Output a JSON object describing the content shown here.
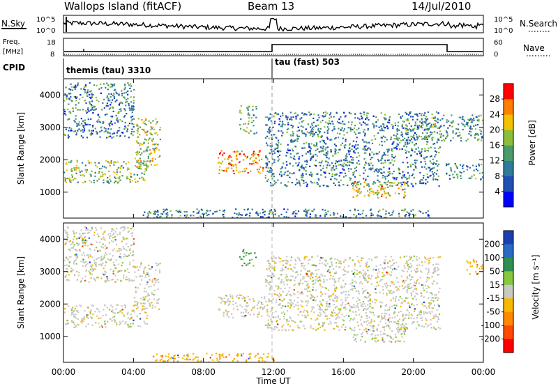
{
  "header": {
    "title": "Wallops Island (fitACF)",
    "beam": "Beam 13",
    "date": "14/Jul/2010"
  },
  "summary": {
    "nsky_label": "N.Sky",
    "nsearch_label": "N.Search",
    "left_ticks": [
      "10^5",
      "10^0"
    ],
    "right_ticks": [
      "10^5",
      "10^0"
    ],
    "freq_label_1": "Freq.",
    "freq_label_2": "[MHz]",
    "freq_ticks": [
      "18",
      "8"
    ],
    "nave_label": "Nave",
    "nave_ticks": [
      "60",
      "0"
    ],
    "cpid_label": "CPID",
    "cpid_segments": [
      {
        "label": "themis (tau) 3310",
        "start": "00:00"
      },
      {
        "label": "tau (fast) 503",
        "start": "12:00"
      }
    ]
  },
  "power_colorbar": {
    "label": "Power [dB]",
    "ticks": [
      "28",
      "24",
      "20",
      "16",
      "12",
      "8",
      "4"
    ],
    "colors": [
      "#0000ff",
      "#1f4fb0",
      "#2f7a9e",
      "#4a9a6a",
      "#8bbf3a",
      "#f2c200",
      "#ff7e00",
      "#ff0000"
    ]
  },
  "velocity_colorbar": {
    "label": "Velocity [m s⁻¹]",
    "ticks": [
      "200",
      "100",
      "50",
      "15",
      "-15",
      "-50",
      "-100",
      "-200"
    ],
    "colors": [
      "#1b3fb0",
      "#2a6ac2",
      "#2f8f4f",
      "#86c83c",
      "#c8c8c4",
      "#f6b800",
      "#ff8a00",
      "#ff4800",
      "#ff0000"
    ]
  },
  "panels": {
    "ylabel": "Slant Range [km]",
    "yticks": [
      "4000",
      "3000",
      "2000",
      "1000"
    ],
    "xticks": [
      "00:00",
      "04:00",
      "08:00",
      "12:00",
      "16:00",
      "20:00",
      "00:00"
    ],
    "xlabel": "Time UT"
  },
  "chart_data": [
    {
      "type": "heatmap",
      "title": "",
      "quantity": "Power",
      "unit": "dB",
      "xlabel": "Time UT",
      "ylabel": "Slant Range [km]",
      "xlim": [
        0,
        24
      ],
      "ylim": [
        200,
        4500
      ],
      "clim": [
        0,
        30
      ],
      "features": [
        {
          "t_start": 0.0,
          "t_end": 4.8,
          "range_start": 1300,
          "range_end": 2000,
          "power": 16
        },
        {
          "t_start": 4.0,
          "t_end": 5.5,
          "range_start": 1800,
          "range_end": 3300,
          "power": 18
        },
        {
          "t_start": 0.0,
          "t_end": 4.0,
          "range_start": 2700,
          "range_end": 4400,
          "power": 10
        },
        {
          "t_start": 8.8,
          "t_end": 11.5,
          "range_start": 1600,
          "range_end": 2300,
          "power": 24
        },
        {
          "t_start": 10.0,
          "t_end": 11.0,
          "range_start": 2800,
          "range_end": 3700,
          "power": 14
        },
        {
          "t_start": 11.5,
          "t_end": 21.5,
          "range_start": 1200,
          "range_end": 3500,
          "power": 10
        },
        {
          "t_start": 16.5,
          "t_end": 19.5,
          "range_start": 850,
          "range_end": 1350,
          "power": 20
        },
        {
          "t_start": 19.5,
          "t_end": 24.0,
          "range_start": 2600,
          "range_end": 3400,
          "power": 12
        },
        {
          "t_start": 21.8,
          "t_end": 24.0,
          "range_start": 1400,
          "range_end": 1900,
          "power": 12
        },
        {
          "t_start": 4.5,
          "t_end": 21.0,
          "range_start": 200,
          "range_end": 500,
          "power": 10
        }
      ]
    },
    {
      "type": "heatmap",
      "title": "",
      "quantity": "Velocity",
      "unit": "m s-1",
      "xlabel": "Time UT",
      "ylabel": "Slant Range [km]",
      "xlim": [
        0,
        24
      ],
      "ylim": [
        200,
        4500
      ],
      "clim": [
        -200,
        200
      ],
      "features": [
        {
          "t_start": 0.0,
          "t_end": 4.8,
          "range_start": 1300,
          "range_end": 2000,
          "velocity": 0
        },
        {
          "t_start": 4.0,
          "t_end": 5.5,
          "range_start": 1800,
          "range_end": 3300,
          "velocity": 0
        },
        {
          "t_start": 0.0,
          "t_end": 4.0,
          "range_start": 2700,
          "range_end": 4400,
          "velocity": 0
        },
        {
          "t_start": 8.8,
          "t_end": 11.5,
          "range_start": 1600,
          "range_end": 2300,
          "velocity": 0
        },
        {
          "t_start": 10.0,
          "t_end": 11.0,
          "range_start": 3200,
          "range_end": 3700,
          "velocity": 40
        },
        {
          "t_start": 11.5,
          "t_end": 21.5,
          "range_start": 1200,
          "range_end": 3500,
          "velocity": 0
        },
        {
          "t_start": 16.5,
          "t_end": 19.5,
          "range_start": 850,
          "range_end": 1350,
          "velocity": 0
        },
        {
          "t_start": 5.0,
          "t_end": 12.0,
          "range_start": 200,
          "range_end": 500,
          "velocity": -40
        },
        {
          "t_start": 23.0,
          "t_end": 24.0,
          "range_start": 2900,
          "range_end": 3400,
          "velocity": -30
        }
      ]
    }
  ]
}
